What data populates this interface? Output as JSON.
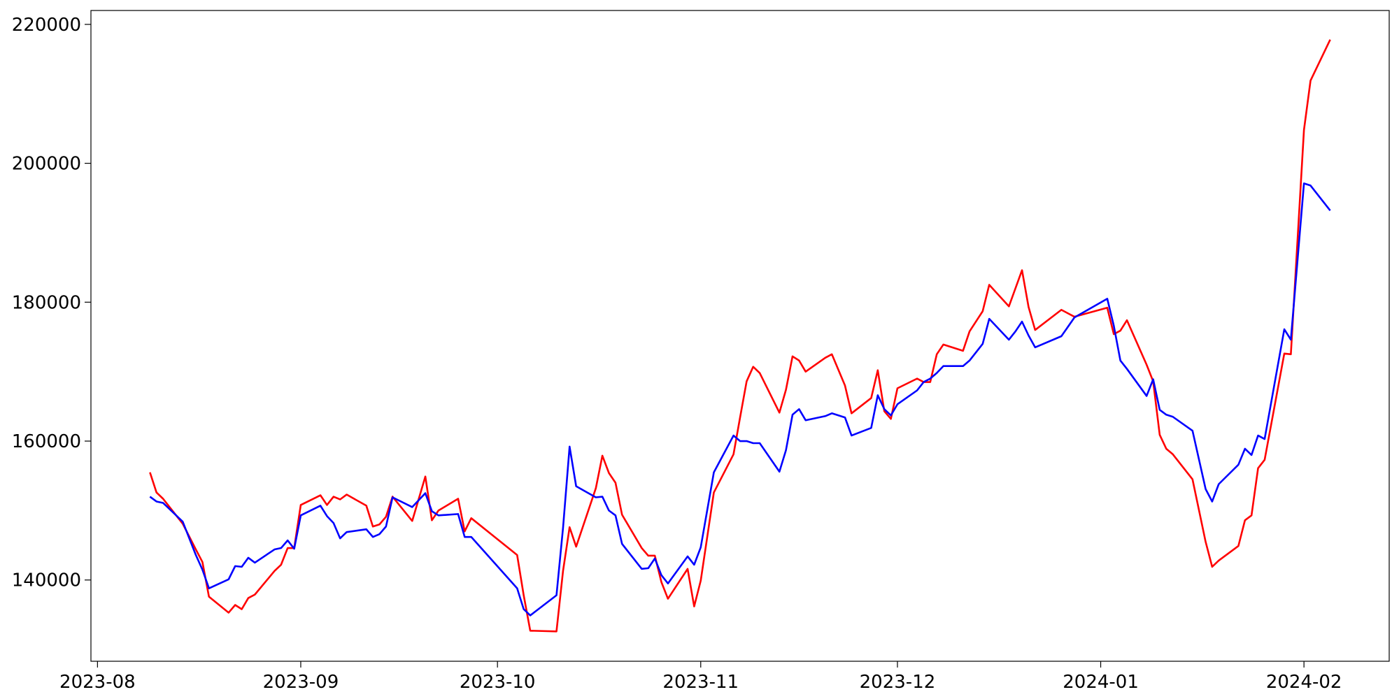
{
  "chart_data": {
    "type": "line",
    "x": [
      "2023-08-09",
      "2023-08-10",
      "2023-08-11",
      "2023-08-14",
      "2023-08-16",
      "2023-08-17",
      "2023-08-18",
      "2023-08-21",
      "2023-08-22",
      "2023-08-23",
      "2023-08-24",
      "2023-08-25",
      "2023-08-28",
      "2023-08-29",
      "2023-08-30",
      "2023-08-31",
      "2023-09-01",
      "2023-09-04",
      "2023-09-05",
      "2023-09-06",
      "2023-09-07",
      "2023-09-08",
      "2023-09-11",
      "2023-09-12",
      "2023-09-13",
      "2023-09-14",
      "2023-09-15",
      "2023-09-18",
      "2023-09-20",
      "2023-09-21",
      "2023-09-22",
      "2023-09-25",
      "2023-09-26",
      "2023-09-27",
      "2023-10-04",
      "2023-10-05",
      "2023-10-06",
      "2023-10-10",
      "2023-10-11",
      "2023-10-12",
      "2023-10-13",
      "2023-10-16",
      "2023-10-17",
      "2023-10-18",
      "2023-10-19",
      "2023-10-20",
      "2023-10-23",
      "2023-10-24",
      "2023-10-25",
      "2023-10-26",
      "2023-10-27",
      "2023-10-30",
      "2023-10-31",
      "2023-11-01",
      "2023-11-03",
      "2023-11-06",
      "2023-11-07",
      "2023-11-08",
      "2023-11-09",
      "2023-11-10",
      "2023-11-13",
      "2023-11-14",
      "2023-11-15",
      "2023-11-16",
      "2023-11-17",
      "2023-11-20",
      "2023-11-21",
      "2023-11-23",
      "2023-11-24",
      "2023-11-27",
      "2023-11-28",
      "2023-11-29",
      "2023-11-30",
      "2023-12-01",
      "2023-12-04",
      "2023-12-05",
      "2023-12-06",
      "2023-12-07",
      "2023-12-08",
      "2023-12-11",
      "2023-12-12",
      "2023-12-14",
      "2023-12-15",
      "2023-12-18",
      "2023-12-19",
      "2023-12-20",
      "2023-12-21",
      "2023-12-22",
      "2023-12-26",
      "2023-12-28",
      "2024-01-02",
      "2024-01-03",
      "2024-01-04",
      "2024-01-05",
      "2024-01-08",
      "2024-01-09",
      "2024-01-10",
      "2024-01-11",
      "2024-01-12",
      "2024-01-15",
      "2024-01-17",
      "2024-01-18",
      "2024-01-19",
      "2024-01-22",
      "2024-01-23",
      "2024-01-24",
      "2024-01-25",
      "2024-01-26",
      "2024-01-29",
      "2024-01-30",
      "2024-02-01",
      "2024-02-02",
      "2024-02-05"
    ],
    "series": [
      {
        "color": "#ff0000",
        "values": [
          155500,
          152600,
          151700,
          148100,
          144400,
          142600,
          137600,
          135300,
          136400,
          135800,
          137400,
          137900,
          141300,
          142200,
          144600,
          144600,
          150800,
          152200,
          150800,
          152000,
          151600,
          152300,
          150700,
          147700,
          148000,
          149100,
          152000,
          148500,
          154900,
          148600,
          150000,
          151700,
          147000,
          148900,
          143600,
          137800,
          132700,
          132600,
          141300,
          147600,
          144800,
          153200,
          157900,
          155400,
          154000,
          149400,
          144600,
          143500,
          143500,
          139700,
          137300,
          141600,
          136200,
          139900,
          152600,
          158100,
          163400,
          168600,
          170700,
          169800,
          164100,
          167400,
          172200,
          171600,
          170000,
          172000,
          172500,
          168000,
          164000,
          166200,
          170200,
          164300,
          163200,
          167600,
          169000,
          168500,
          168500,
          172500,
          173900,
          173000,
          175800,
          178700,
          182500,
          179400,
          182000,
          184600,
          179300,
          176000,
          178900,
          177900,
          179200,
          175400,
          175900,
          177400,
          171000,
          168600,
          160900,
          158900,
          158100,
          154500,
          145500,
          141900,
          142800,
          144900,
          148600,
          149300,
          156100,
          157300,
          172600,
          172500,
          204800,
          211900,
          217800
        ]
      },
      {
        "color": "#0000ff",
        "values": [
          152000,
          151300,
          151100,
          148400,
          143600,
          141500,
          138800,
          140100,
          142000,
          141900,
          143200,
          142500,
          144400,
          144600,
          145700,
          144500,
          149300,
          150700,
          149200,
          148200,
          146000,
          146900,
          147300,
          146200,
          146600,
          147700,
          151900,
          150500,
          152500,
          149900,
          149300,
          149500,
          146200,
          146200,
          138800,
          135800,
          134900,
          137800,
          147500,
          159200,
          153500,
          151900,
          152000,
          150000,
          149300,
          145200,
          141600,
          141700,
          143100,
          140700,
          139500,
          143400,
          142200,
          144700,
          155500,
          160800,
          160000,
          160000,
          159700,
          159700,
          155600,
          158700,
          163800,
          164600,
          163000,
          163600,
          164000,
          163400,
          160800,
          161900,
          166600,
          164600,
          163700,
          165300,
          167300,
          168500,
          169000,
          169800,
          170800,
          170800,
          171600,
          174000,
          177600,
          174600,
          175800,
          177200,
          175200,
          173500,
          175100,
          177800,
          180500,
          176600,
          171600,
          170400,
          166500,
          168900,
          164500,
          163800,
          163500,
          161500,
          153100,
          151300,
          153800,
          156600,
          158900,
          158000,
          160800,
          160300,
          176100,
          174600,
          197100,
          196800,
          193200
        ]
      }
    ],
    "xlim": [
      "2023-07-31",
      "2024-02-14"
    ],
    "xticks": [
      "2023-08",
      "2023-09",
      "2023-10",
      "2023-11",
      "2023-12",
      "2024-01",
      "2024-02"
    ],
    "ylim": [
      128300,
      222000
    ],
    "yticks": [
      140000,
      160000,
      180000,
      200000,
      220000
    ],
    "grid": false
  }
}
